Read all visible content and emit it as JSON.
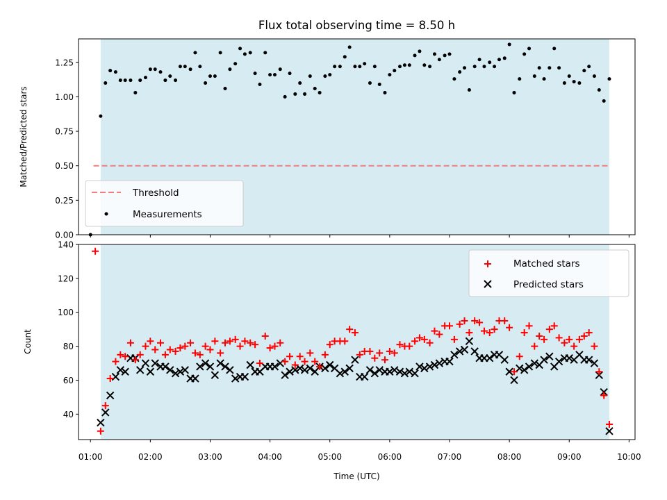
{
  "chart_data": [
    {
      "type": "scatter",
      "title": "Flux total observing time = 8.50 h",
      "xlabel": "",
      "ylabel": "Matched/Predicted stars",
      "ylim": [
        0,
        1.42
      ],
      "xlim": [
        0.8,
        10.1
      ],
      "x_ticks": [
        1,
        2,
        3,
        4,
        5,
        6,
        7,
        8,
        9,
        10
      ],
      "y_ticks": [
        0,
        0.25,
        0.5,
        0.75,
        1.0,
        1.25
      ],
      "y_tick_labels": [
        "0.00",
        "0.25",
        "0.50",
        "0.75",
        "1.00",
        "1.25"
      ],
      "grid": false,
      "legend_position": "lower-left",
      "observing_window": [
        1.17,
        9.67
      ],
      "observing_window_color": "#add8e6",
      "threshold": {
        "name": "Threshold",
        "value": 0.5,
        "range": [
          1.05,
          9.67
        ],
        "color": "#f08080",
        "style": "dashed"
      },
      "series": [
        {
          "name": "Measurements",
          "color": "#000000",
          "marker": "dot",
          "points": [
            [
              1.0,
              0.0
            ],
            [
              1.17,
              0.86
            ],
            [
              1.25,
              1.1
            ],
            [
              1.33,
              1.19
            ],
            [
              1.42,
              1.18
            ],
            [
              1.5,
              1.12
            ],
            [
              1.58,
              1.12
            ],
            [
              1.67,
              1.12
            ],
            [
              1.75,
              1.03
            ],
            [
              1.83,
              1.12
            ],
            [
              1.92,
              1.14
            ],
            [
              2.0,
              1.2
            ],
            [
              2.08,
              1.2
            ],
            [
              2.17,
              1.18
            ],
            [
              2.25,
              1.12
            ],
            [
              2.33,
              1.15
            ],
            [
              2.42,
              1.12
            ],
            [
              2.5,
              1.22
            ],
            [
              2.58,
              1.22
            ],
            [
              2.67,
              1.2
            ],
            [
              2.75,
              1.32
            ],
            [
              2.83,
              1.22
            ],
            [
              2.92,
              1.1
            ],
            [
              3.0,
              1.15
            ],
            [
              3.08,
              1.15
            ],
            [
              3.17,
              1.32
            ],
            [
              3.25,
              1.06
            ],
            [
              3.33,
              1.2
            ],
            [
              3.42,
              1.24
            ],
            [
              3.5,
              1.35
            ],
            [
              3.58,
              1.31
            ],
            [
              3.67,
              1.32
            ],
            [
              3.75,
              1.17
            ],
            [
              3.83,
              1.09
            ],
            [
              3.92,
              1.32
            ],
            [
              4.0,
              1.16
            ],
            [
              4.08,
              1.16
            ],
            [
              4.17,
              1.2
            ],
            [
              4.25,
              1.0
            ],
            [
              4.33,
              1.17
            ],
            [
              4.42,
              1.02
            ],
            [
              4.5,
              1.1
            ],
            [
              4.58,
              1.02
            ],
            [
              4.67,
              1.15
            ],
            [
              4.75,
              1.06
            ],
            [
              4.83,
              1.03
            ],
            [
              4.92,
              1.15
            ],
            [
              5.0,
              1.16
            ],
            [
              5.08,
              1.22
            ],
            [
              5.17,
              1.22
            ],
            [
              5.25,
              1.29
            ],
            [
              5.33,
              1.36
            ],
            [
              5.42,
              1.22
            ],
            [
              5.5,
              1.22
            ],
            [
              5.58,
              1.24
            ],
            [
              5.67,
              1.1
            ],
            [
              5.75,
              1.22
            ],
            [
              5.83,
              1.09
            ],
            [
              5.92,
              1.03
            ],
            [
              6.0,
              1.16
            ],
            [
              6.08,
              1.19
            ],
            [
              6.17,
              1.22
            ],
            [
              6.25,
              1.23
            ],
            [
              6.33,
              1.23
            ],
            [
              6.42,
              1.3
            ],
            [
              6.5,
              1.33
            ],
            [
              6.58,
              1.23
            ],
            [
              6.67,
              1.22
            ],
            [
              6.75,
              1.31
            ],
            [
              6.83,
              1.27
            ],
            [
              6.92,
              1.3
            ],
            [
              7.0,
              1.31
            ],
            [
              7.08,
              1.13
            ],
            [
              7.17,
              1.18
            ],
            [
              7.25,
              1.21
            ],
            [
              7.33,
              1.05
            ],
            [
              7.42,
              1.22
            ],
            [
              7.5,
              1.27
            ],
            [
              7.58,
              1.22
            ],
            [
              7.67,
              1.25
            ],
            [
              7.75,
              1.22
            ],
            [
              7.83,
              1.27
            ],
            [
              7.92,
              1.28
            ],
            [
              8.0,
              1.38
            ],
            [
              8.08,
              1.03
            ],
            [
              8.17,
              1.13
            ],
            [
              8.25,
              1.31
            ],
            [
              8.33,
              1.35
            ],
            [
              8.42,
              1.15
            ],
            [
              8.5,
              1.21
            ],
            [
              8.58,
              1.13
            ],
            [
              8.67,
              1.21
            ],
            [
              8.75,
              1.35
            ],
            [
              8.83,
              1.21
            ],
            [
              8.92,
              1.1
            ],
            [
              9.0,
              1.15
            ],
            [
              9.08,
              1.11
            ],
            [
              9.17,
              1.1
            ],
            [
              9.25,
              1.19
            ],
            [
              9.33,
              1.22
            ],
            [
              9.42,
              1.15
            ],
            [
              9.5,
              1.05
            ],
            [
              9.58,
              0.97
            ],
            [
              9.67,
              1.13
            ]
          ]
        }
      ]
    },
    {
      "type": "scatter",
      "title": "",
      "xlabel": "Time (UTC)",
      "ylabel": "Count",
      "ylim": [
        25,
        140
      ],
      "xlim": [
        0.8,
        10.1
      ],
      "x_ticks": [
        1,
        2,
        3,
        4,
        5,
        6,
        7,
        8,
        9,
        10
      ],
      "x_tick_labels": [
        "01:00",
        "02:00",
        "03:00",
        "04:00",
        "05:00",
        "06:00",
        "07:00",
        "08:00",
        "09:00",
        "10:00"
      ],
      "y_ticks": [
        40,
        60,
        80,
        100,
        120,
        140
      ],
      "y_tick_labels": [
        "40",
        "60",
        "80",
        "100",
        "120",
        "140"
      ],
      "grid": false,
      "legend_position": "top-right",
      "observing_window": [
        1.17,
        9.67
      ],
      "observing_window_color": "#add8e6",
      "x": [
        1.08,
        1.17,
        1.25,
        1.33,
        1.42,
        1.5,
        1.58,
        1.67,
        1.75,
        1.83,
        1.92,
        2.0,
        2.08,
        2.17,
        2.25,
        2.33,
        2.42,
        2.5,
        2.58,
        2.67,
        2.75,
        2.83,
        2.92,
        3.0,
        3.08,
        3.17,
        3.25,
        3.33,
        3.42,
        3.5,
        3.58,
        3.67,
        3.75,
        3.83,
        3.92,
        4.0,
        4.08,
        4.17,
        4.25,
        4.33,
        4.42,
        4.5,
        4.58,
        4.67,
        4.75,
        4.83,
        4.92,
        5.0,
        5.08,
        5.17,
        5.25,
        5.33,
        5.42,
        5.5,
        5.58,
        5.67,
        5.75,
        5.83,
        5.92,
        6.0,
        6.08,
        6.17,
        6.25,
        6.33,
        6.42,
        6.5,
        6.58,
        6.67,
        6.75,
        6.83,
        6.92,
        7.0,
        7.08,
        7.17,
        7.25,
        7.33,
        7.42,
        7.5,
        7.58,
        7.67,
        7.75,
        7.83,
        7.92,
        8.0,
        8.08,
        8.17,
        8.25,
        8.33,
        8.42,
        8.5,
        8.58,
        8.67,
        8.75,
        8.83,
        8.92,
        9.0,
        9.08,
        9.17,
        9.25,
        9.33,
        9.42,
        9.5,
        9.58,
        9.67
      ],
      "series": [
        {
          "name": "Matched stars",
          "color": "#ff0000",
          "marker": "plus",
          "values": [
            136,
            30,
            45,
            61,
            71,
            75,
            74,
            82,
            72,
            75,
            80,
            83,
            78,
            82,
            75,
            78,
            77,
            79,
            80,
            82,
            76,
            75,
            80,
            78,
            83,
            76,
            82,
            83,
            84,
            80,
            83,
            82,
            81,
            70,
            86,
            79,
            80,
            82,
            71,
            74,
            69,
            74,
            71,
            76,
            71,
            68,
            75,
            81,
            83,
            83,
            83,
            90,
            88,
            75,
            77,
            77,
            73,
            76,
            72,
            77,
            76,
            81,
            80,
            80,
            83,
            85,
            84,
            82,
            89,
            87,
            92,
            92,
            84,
            93,
            95,
            88,
            95,
            94,
            89,
            88,
            90,
            95,
            95,
            91,
            65,
            74,
            88,
            92,
            80,
            86,
            84,
            90,
            92,
            85,
            82,
            84,
            80,
            84,
            86,
            88,
            80,
            65,
            51,
            34
          ]
        },
        {
          "name": "Predicted stars",
          "color": "#000000",
          "marker": "x",
          "values": [
            null,
            35,
            41,
            51,
            62,
            66,
            65,
            73,
            73,
            66,
            70,
            65,
            70,
            68,
            68,
            66,
            64,
            65,
            66,
            61,
            61,
            68,
            70,
            68,
            63,
            70,
            68,
            66,
            61,
            62,
            62,
            69,
            65,
            65,
            68,
            68,
            68,
            70,
            63,
            65,
            66,
            67,
            66,
            67,
            65,
            68,
            67,
            69,
            67,
            64,
            65,
            67,
            72,
            62,
            62,
            66,
            64,
            66,
            65,
            65,
            66,
            65,
            64,
            65,
            64,
            68,
            67,
            68,
            69,
            70,
            71,
            71,
            75,
            77,
            78,
            83,
            77,
            73,
            73,
            73,
            75,
            75,
            72,
            65,
            60,
            67,
            66,
            68,
            70,
            69,
            72,
            74,
            68,
            71,
            73,
            73,
            72,
            75,
            72,
            72,
            70,
            63,
            53,
            30
          ]
        }
      ]
    }
  ]
}
